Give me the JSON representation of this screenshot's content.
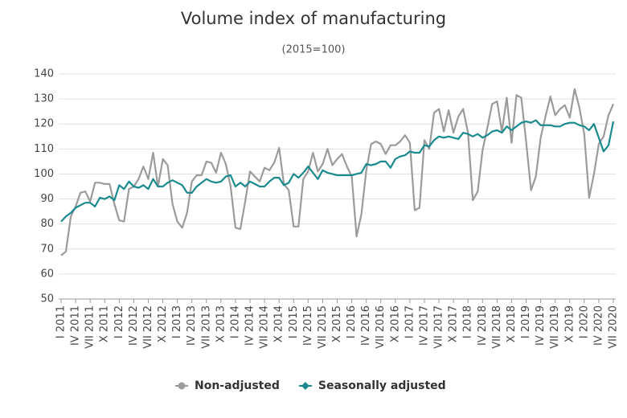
{
  "chart_data": {
    "type": "line",
    "title": "Volume index of manufacturing",
    "subtitle": "(2015=100)",
    "categories": [
      "I 2011",
      null,
      null,
      "IV 2011",
      null,
      null,
      "VII 2011",
      null,
      null,
      "X 2011",
      null,
      null,
      "I 2012",
      null,
      null,
      "IV 2012",
      null,
      null,
      "VII 2012",
      null,
      null,
      "X 2012",
      null,
      null,
      "I 2013",
      null,
      null,
      "IV 2013",
      null,
      null,
      "VII 2013",
      null,
      null,
      "X 2013",
      null,
      null,
      "I 2014",
      null,
      null,
      "IV 2014",
      null,
      null,
      "VII 2014",
      null,
      null,
      "X 2014",
      null,
      null,
      "I 2015",
      null,
      null,
      "IV 2015",
      null,
      null,
      "VII 2015",
      null,
      null,
      "X 2015",
      null,
      null,
      "I 2016",
      null,
      null,
      "IV 2016",
      null,
      null,
      "VII 2016",
      null,
      null,
      "X 2016",
      null,
      null,
      "I 2017",
      null,
      null,
      "IV 2017",
      null,
      null,
      "VII 2017",
      null,
      null,
      "X 2017",
      null,
      null,
      "I 2018",
      null,
      null,
      "IV 2018",
      null,
      null,
      "VII 2018",
      null,
      null,
      "X 2018",
      null,
      null,
      "I 2019",
      null,
      null,
      "IV 2019",
      null,
      null,
      "VII 2019",
      null,
      null,
      "X 2019",
      null,
      null,
      "I 2020",
      null,
      null,
      "IV 2020",
      null,
      null,
      "VII 2020"
    ],
    "series": [
      {
        "name": "Non-adjusted",
        "color": "#9b9b9b",
        "marker": "circle",
        "values": [
          67.5,
          69,
          83,
          87,
          92.5,
          93,
          89,
          96.5,
          96.5,
          96,
          96,
          88,
          81.5,
          81,
          94,
          95,
          98,
          103,
          98,
          108.5,
          95,
          106,
          103.5,
          88,
          81,
          78.5,
          84.5,
          97,
          99.5,
          99.5,
          105,
          104.5,
          100.5,
          108.5,
          104,
          95,
          78.5,
          78,
          89,
          101,
          99,
          97,
          102.5,
          101.5,
          104.5,
          110.5,
          96,
          93.5,
          79,
          79,
          98,
          101,
          108.5,
          101,
          104,
          110,
          103.5,
          106,
          108,
          103,
          99,
          75,
          84,
          101.5,
          112,
          113,
          112,
          108,
          111.5,
          111.5,
          113,
          115.5,
          112.5,
          85.5,
          86.5,
          113.5,
          110,
          124.5,
          126,
          117,
          125.5,
          116.5,
          123,
          126,
          116.5,
          89.5,
          93,
          109.5,
          118.5,
          128,
          129,
          117,
          130.5,
          112.5,
          131.5,
          130.5,
          113,
          93.5,
          99,
          114.5,
          123,
          131,
          123.5,
          126,
          127.5,
          122.5,
          134,
          126.5,
          116,
          90.5,
          100,
          112,
          115,
          123.5,
          128
        ]
      },
      {
        "name": "Seasonally adjusted",
        "color": "#1a8a8f",
        "marker": "diamond",
        "values": [
          81,
          83,
          84.5,
          86.5,
          87.5,
          88.5,
          88.5,
          87,
          90.5,
          90,
          91,
          89.5,
          95.5,
          94,
          97,
          95,
          94.5,
          95.5,
          94,
          98,
          95,
          95,
          96.5,
          97.5,
          96.5,
          95.5,
          92.5,
          92.5,
          95,
          96.5,
          98,
          97,
          96.5,
          97,
          99,
          99.5,
          95,
          96.5,
          95,
          97,
          96,
          95,
          95,
          97,
          98.5,
          98.5,
          95.5,
          96.5,
          100,
          98.5,
          100.5,
          103,
          100.5,
          98,
          101.5,
          100.5,
          100,
          99.5,
          99.5,
          99.5,
          99.5,
          100,
          100.5,
          104,
          103.5,
          104,
          105,
          105,
          102.5,
          106,
          107,
          107.5,
          109,
          108.5,
          108.5,
          111.5,
          111,
          113.5,
          115,
          114.5,
          115,
          114.5,
          114,
          116.5,
          116,
          115,
          116,
          114.5,
          115.5,
          117,
          117.5,
          116.5,
          119,
          117.5,
          119,
          120.5,
          121,
          120.5,
          121.5,
          119.5,
          119.5,
          119.5,
          119,
          119,
          120,
          120.5,
          120.5,
          119.5,
          119,
          117.5,
          120,
          114.5,
          109,
          111.5,
          121
        ]
      }
    ],
    "ylim": [
      50,
      140
    ],
    "yticks": [
      50,
      60,
      70,
      80,
      90,
      100,
      110,
      120,
      130,
      140
    ],
    "grid": true,
    "legend": "bottom"
  }
}
